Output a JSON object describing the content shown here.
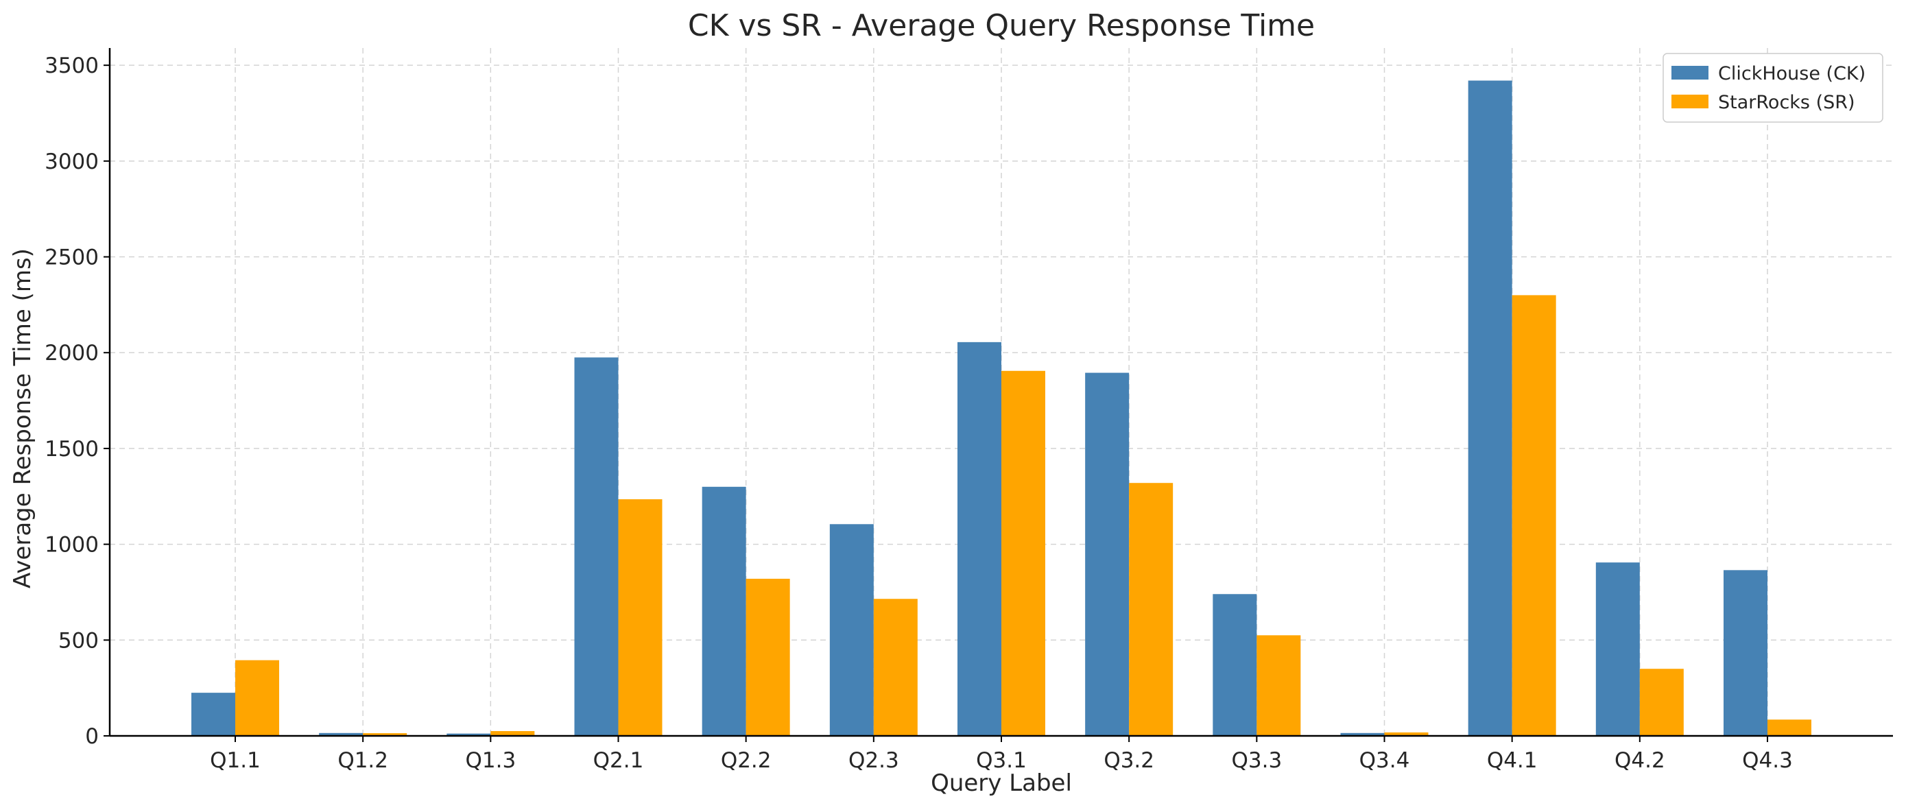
{
  "chart_data": {
    "type": "bar",
    "title": "CK vs SR - Average Query Response Time",
    "xlabel": "Query Label",
    "ylabel": "Average Response Time (ms)",
    "categories": [
      "Q1.1",
      "Q1.2",
      "Q1.3",
      "Q2.1",
      "Q2.2",
      "Q2.3",
      "Q3.1",
      "Q3.2",
      "Q3.3",
      "Q3.4",
      "Q4.1",
      "Q4.2",
      "Q4.3"
    ],
    "series": [
      {
        "name": "ClickHouse (CK)",
        "color": "#4682b4",
        "values": [
          225,
          15,
          12,
          1975,
          1300,
          1105,
          2055,
          1895,
          740,
          15,
          3420,
          905,
          865
        ]
      },
      {
        "name": "StarRocks (SR)",
        "color": "#ffa500",
        "values": [
          395,
          14,
          25,
          1235,
          820,
          715,
          1905,
          1320,
          525,
          18,
          2300,
          350,
          85
        ]
      }
    ],
    "ylim": [
      0,
      3590
    ],
    "yticks": [
      0,
      500,
      1000,
      1500,
      2000,
      2500,
      3000,
      3500
    ],
    "grid": true,
    "legend_position": "top-right"
  }
}
